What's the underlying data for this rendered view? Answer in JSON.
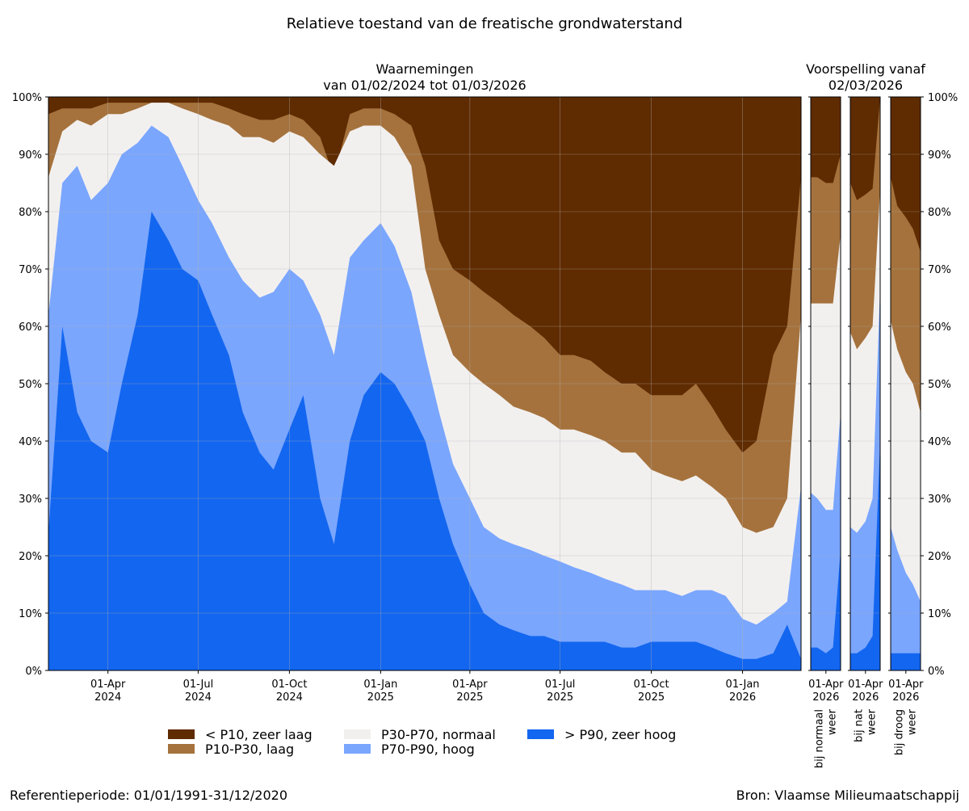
{
  "chart_data": {
    "type": "area",
    "stacked": true,
    "title": "Relatieve toestand van de freatische grondwaterstand",
    "panels": {
      "observed": {
        "title": "Waarnemingen",
        "subtitle": "van 01/02/2024 tot 01/03/2026",
        "x_start": "2024-02-01",
        "x_end": "2026-03-01",
        "x_ticks": [
          {
            "date": "2024-04-01",
            "label": "01-Apr\n2024"
          },
          {
            "date": "2024-07-01",
            "label": "01-Jul\n2024"
          },
          {
            "date": "2024-10-01",
            "label": "01-Oct\n2024"
          },
          {
            "date": "2025-01-01",
            "label": "01-Jan\n2025"
          },
          {
            "date": "2025-04-01",
            "label": "01-Apr\n2025"
          },
          {
            "date": "2025-07-01",
            "label": "01-Jul\n2025"
          },
          {
            "date": "2025-10-01",
            "label": "01-Oct\n2025"
          },
          {
            "date": "2026-01-01",
            "label": "01-Jan\n2026"
          }
        ],
        "x": [
          "2024-02-01",
          "2024-02-15",
          "2024-03-01",
          "2024-03-15",
          "2024-04-01",
          "2024-04-15",
          "2024-05-01",
          "2024-05-15",
          "2024-06-01",
          "2024-06-15",
          "2024-07-01",
          "2024-07-15",
          "2024-08-01",
          "2024-08-15",
          "2024-09-01",
          "2024-09-15",
          "2024-10-01",
          "2024-10-15",
          "2024-11-01",
          "2024-11-15",
          "2024-12-01",
          "2024-12-15",
          "2025-01-01",
          "2025-01-15",
          "2025-02-01",
          "2025-02-15",
          "2025-03-01",
          "2025-03-15",
          "2025-04-01",
          "2025-04-15",
          "2025-05-01",
          "2025-05-15",
          "2025-06-01",
          "2025-06-15",
          "2025-07-01",
          "2025-07-15",
          "2025-08-01",
          "2025-08-15",
          "2025-09-01",
          "2025-09-15",
          "2025-10-01",
          "2025-10-15",
          "2025-11-01",
          "2025-11-15",
          "2025-12-01",
          "2025-12-15",
          "2026-01-01",
          "2026-01-15",
          "2026-02-01",
          "2026-02-15",
          "2026-03-01"
        ],
        "series": [
          {
            "name": "> P90, zeer hoog",
            "values": [
              24,
              60,
              45,
              40,
              38,
              50,
              62,
              80,
              75,
              70,
              68,
              62,
              55,
              45,
              38,
              35,
              42,
              48,
              30,
              22,
              40,
              48,
              52,
              50,
              45,
              40,
              30,
              22,
              15,
              10,
              8,
              7,
              6,
              6,
              5,
              5,
              5,
              5,
              4,
              4,
              5,
              5,
              5,
              5,
              4,
              3,
              2,
              2,
              3,
              8,
              2
            ]
          },
          {
            "name": "P70-P90, hoog",
            "values": [
              62,
              85,
              88,
              82,
              85,
              90,
              92,
              95,
              93,
              88,
              82,
              78,
              72,
              68,
              65,
              66,
              70,
              68,
              62,
              55,
              72,
              75,
              78,
              74,
              66,
              55,
              45,
              36,
              30,
              25,
              23,
              22,
              21,
              20,
              19,
              18,
              17,
              16,
              15,
              14,
              14,
              14,
              13,
              14,
              14,
              13,
              9,
              8,
              10,
              12,
              32
            ]
          },
          {
            "name": "P30-P70, normaal",
            "values": [
              86,
              94,
              96,
              95,
              97,
              97,
              98,
              99,
              99,
              98,
              97,
              96,
              95,
              93,
              93,
              92,
              94,
              93,
              90,
              88,
              94,
              95,
              95,
              93,
              88,
              70,
              62,
              55,
              52,
              50,
              48,
              46,
              45,
              44,
              42,
              42,
              41,
              40,
              38,
              38,
              35,
              34,
              33,
              34,
              32,
              30,
              25,
              24,
              25,
              30,
              62
            ]
          },
          {
            "name": "P10-P30, laag",
            "values": [
              97,
              98,
              98,
              98,
              99,
              99,
              99,
              99,
              99,
              99,
              99,
              99,
              98,
              97,
              96,
              96,
              97,
              96,
              93,
              86,
              97,
              98,
              98,
              97,
              95,
              88,
              75,
              70,
              68,
              66,
              64,
              62,
              60,
              58,
              55,
              55,
              54,
              52,
              50,
              50,
              48,
              48,
              48,
              50,
              46,
              42,
              38,
              40,
              55,
              60,
              86
            ]
          },
          {
            "name": "< P10, zeer laag",
            "values": [
              100,
              100,
              100,
              100,
              100,
              100,
              100,
              100,
              100,
              100,
              100,
              100,
              100,
              100,
              100,
              100,
              100,
              100,
              100,
              100,
              100,
              100,
              100,
              100,
              100,
              100,
              100,
              100,
              100,
              100,
              100,
              100,
              100,
              100,
              100,
              100,
              100,
              100,
              100,
              100,
              100,
              100,
              100,
              100,
              100,
              100,
              100,
              100,
              100,
              100,
              100
            ]
          }
        ]
      },
      "forecast": {
        "title": "Voorspelling vanaf",
        "subtitle": "02/03/2026",
        "x_tick_label": "01-Apr\n2026",
        "tick_date": "2026-04-01",
        "x_start": "2026-03-02",
        "x_end": "2026-04-30",
        "scenarios": [
          {
            "label": "bij normaal\nweer",
            "x": [
              "2026-03-02",
              "2026-03-15",
              "2026-04-01",
              "2026-04-15",
              "2026-04-30"
            ],
            "series": [
              [
                4,
                4,
                3,
                4,
                21
              ],
              [
                31,
                30,
                28,
                28,
                45
              ],
              [
                64,
                64,
                64,
                64,
                76
              ],
              [
                86,
                86,
                85,
                85,
                90
              ],
              [
                100,
                100,
                100,
                100,
                100
              ]
            ]
          },
          {
            "label": "bij nat\nweer",
            "x": [
              "2026-03-02",
              "2026-03-15",
              "2026-04-01",
              "2026-04-15",
              "2026-04-30"
            ],
            "series": [
              [
                3,
                3,
                4,
                6,
                40
              ],
              [
                25,
                24,
                26,
                30,
                67
              ],
              [
                59,
                56,
                58,
                60,
                84
              ],
              [
                85,
                82,
                83,
                84,
                100
              ],
              [
                100,
                100,
                100,
                100,
                100
              ]
            ]
          },
          {
            "label": "bij droog\nweer",
            "x": [
              "2026-03-02",
              "2026-03-15",
              "2026-04-01",
              "2026-04-15",
              "2026-04-30"
            ],
            "series": [
              [
                3,
                3,
                3,
                3,
                3
              ],
              [
                25,
                21,
                17,
                15,
                12
              ],
              [
                61,
                56,
                52,
                50,
                45
              ],
              [
                86,
                81,
                79,
                77,
                73
              ],
              [
                100,
                100,
                100,
                100,
                100
              ]
            ]
          }
        ]
      }
    },
    "ylim": [
      0,
      100
    ],
    "y_ticks": [
      "0%",
      "10%",
      "20%",
      "30%",
      "40%",
      "50%",
      "60%",
      "70%",
      "80%",
      "90%",
      "100%"
    ],
    "grid": true,
    "legend_placement": "bottom-center",
    "legend": [
      {
        "label": "< P10, zeer laag",
        "color": "#5f2b00"
      },
      {
        "label": "P10-P30, laag",
        "color": "#a5723d"
      },
      {
        "label": "P30-P70, normaal",
        "color": "#f2f0ef"
      },
      {
        "label": "P70-P90, hoog",
        "color": "#7aa6fe"
      },
      {
        "label": "> P90, zeer hoog",
        "color": "#1366ef"
      }
    ],
    "colors": {
      "zeer_laag": "#5f2b00",
      "laag": "#a5723d",
      "normaal": "#f2f0ef",
      "hoog": "#7aa6fe",
      "zeer_hoog": "#1366ef"
    }
  },
  "footer": {
    "reference": "Referentieperiode: 01/01/1991-31/12/2020",
    "source": "Bron: Vlaamse Milieumaatschappij"
  }
}
